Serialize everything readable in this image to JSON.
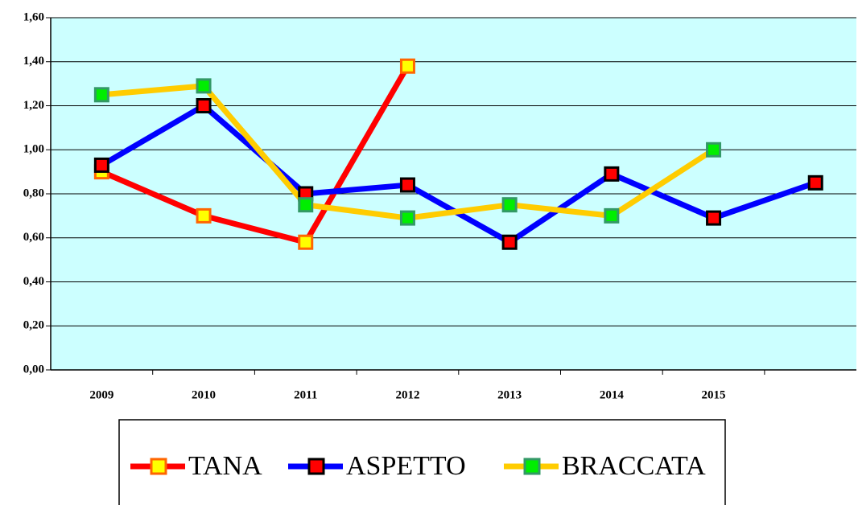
{
  "chart_data": {
    "type": "line",
    "categories": [
      "2009",
      "2010",
      "2011",
      "2012",
      "2013",
      "2014",
      "2015",
      null
    ],
    "series": [
      {
        "name": "TANA",
        "color": "#ff0000",
        "marker_color": "#ffff00",
        "marker_edge": "#ff6600",
        "values": [
          0.9,
          0.7,
          0.58,
          1.38,
          null,
          null,
          null,
          null
        ]
      },
      {
        "name": "ASPETTO",
        "color": "#0000ff",
        "marker_color": "#ff0000",
        "marker_edge": "#000000",
        "values": [
          0.93,
          1.2,
          0.8,
          0.84,
          0.58,
          0.89,
          0.69,
          0.85
        ]
      },
      {
        "name": "BRACCATA",
        "color": "#ffcc00",
        "marker_color": "#00ee00",
        "marker_edge": "#339966",
        "values": [
          1.25,
          1.29,
          0.75,
          0.69,
          0.75,
          0.7,
          1.0,
          null
        ]
      }
    ],
    "ylim": [
      0,
      1.6
    ],
    "yticks": [
      {
        "value": 0,
        "label": "0,00"
      },
      {
        "value": 0.2,
        "label": "0,20"
      },
      {
        "value": 0.4,
        "label": "0,40"
      },
      {
        "value": 0.6,
        "label": "0,60"
      },
      {
        "value": 0.8,
        "label": "0,80"
      },
      {
        "value": 1.0,
        "label": "1,00"
      },
      {
        "value": 1.2,
        "label": "1,20"
      },
      {
        "value": 1.4,
        "label": "1,40"
      },
      {
        "value": 1.6,
        "label": "1,60"
      }
    ],
    "grid": true,
    "background": "#ccffff"
  }
}
